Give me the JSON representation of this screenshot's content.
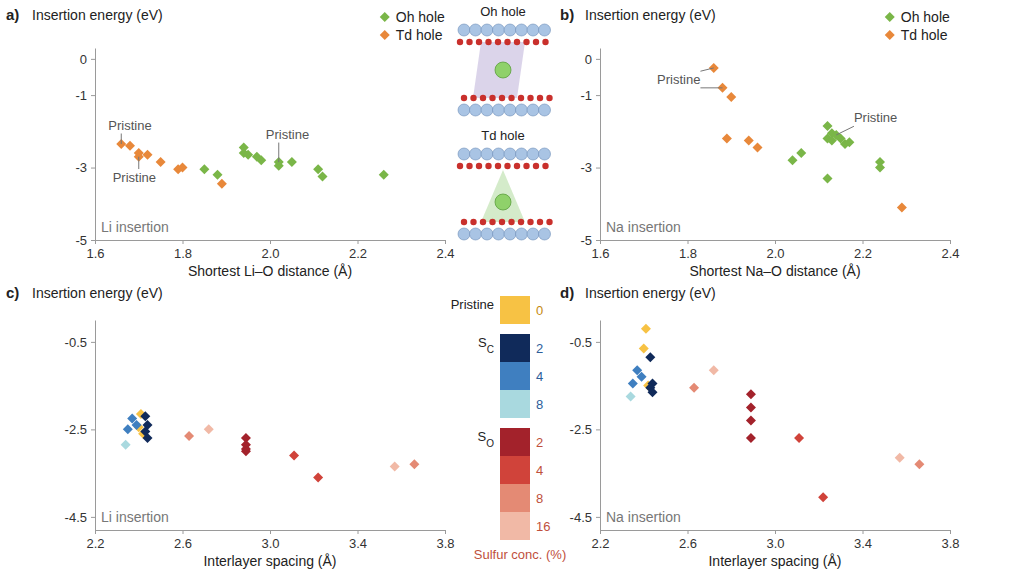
{
  "chart_data": [
    {
      "type": "scatter",
      "panel": "a)",
      "y_label": "Insertion energy (eV)",
      "x_label": "Shortest Li–O distance (Å)",
      "subtitle": "Li insertion",
      "xlim": [
        1.6,
        2.4
      ],
      "xticks": [
        1.6,
        1.8,
        {
          "value": 2,
          "label": "2.0"
        },
        2.2,
        2.4
      ],
      "ylim": [
        -5,
        0.3
      ],
      "yticks": [
        0,
        -1,
        -3,
        -5
      ],
      "grid": false,
      "legend": "top-right",
      "marker": "diamond",
      "series": [
        {
          "name": "Oh hole",
          "color": "#7ab648",
          "x": [
            1.85,
            1.88,
            1.94,
            1.94,
            1.95,
            1.97,
            1.98,
            2.02,
            2.02,
            2.05,
            2.11,
            2.12,
            2.26
          ],
          "values": [
            -3.05,
            -3.2,
            -2.45,
            -2.6,
            -2.65,
            -2.7,
            -2.8,
            -2.85,
            -2.95,
            -2.85,
            -3.05,
            -3.25,
            -3.2
          ]
        },
        {
          "name": "Td hole",
          "color": "#e8883a",
          "x": [
            1.66,
            1.68,
            1.7,
            1.7,
            1.72,
            1.75,
            1.79,
            1.8,
            1.89
          ],
          "values": [
            -2.35,
            -2.4,
            -2.6,
            -2.7,
            -2.65,
            -2.85,
            -3.05,
            -3.0,
            -3.45
          ]
        }
      ],
      "annotations": [
        {
          "text": "Pristine",
          "x": 1.68,
          "y": -1.95,
          "targets": [
            [
              1.66,
              -2.35
            ]
          ]
        },
        {
          "text": "Pristine",
          "x": 1.69,
          "y": -3.4,
          "targets": [
            [
              1.7,
              -2.7
            ]
          ]
        },
        {
          "text": "Pristine",
          "x": 2.04,
          "y": -2.2,
          "targets": [
            [
              2.02,
              -2.85
            ]
          ]
        }
      ]
    },
    {
      "type": "scatter",
      "panel": "b)",
      "y_label": "Insertion energy (eV)",
      "x_label": "Shortest Na–O distance (Å)",
      "subtitle": "Na insertion",
      "xlim": [
        1.6,
        2.4
      ],
      "xticks": [
        1.6,
        1.8,
        {
          "value": 2,
          "label": "2.0"
        },
        2.2,
        2.4
      ],
      "ylim": [
        -5,
        0.3
      ],
      "yticks": [
        0,
        -1,
        -3,
        -5
      ],
      "grid": false,
      "legend": "top-right",
      "marker": "diamond",
      "series": [
        {
          "name": "Oh hole",
          "color": "#7ab648",
          "x": [
            2.04,
            2.06,
            2.12,
            2.12,
            2.12,
            2.13,
            2.13,
            2.14,
            2.15,
            2.16,
            2.17,
            2.24,
            2.24
          ],
          "values": [
            -2.8,
            -2.6,
            -1.85,
            -2.2,
            -3.3,
            -2.05,
            -2.25,
            -2.1,
            -2.2,
            -2.35,
            -2.3,
            -2.85,
            -3.0
          ]
        },
        {
          "name": "Td hole",
          "color": "#e8883a",
          "x": [
            1.86,
            1.88,
            1.9,
            1.89,
            1.94,
            1.96,
            2.29
          ],
          "values": [
            -0.25,
            -0.8,
            -1.05,
            -2.2,
            -2.25,
            -2.45,
            -4.1
          ]
        }
      ],
      "annotations": [
        {
          "text": "Pristine",
          "x": 1.78,
          "y": -0.7,
          "targets": [
            [
              1.86,
              -0.25
            ],
            [
              1.88,
              -0.8
            ]
          ]
        },
        {
          "text": "Pristine",
          "x": 2.23,
          "y": -1.75,
          "targets": [
            [
              2.14,
              -2.1
            ]
          ]
        }
      ]
    },
    {
      "type": "scatter",
      "panel": "c)",
      "y_label": "Insertion energy (eV)",
      "x_label": "Interlayer spacing (Å)",
      "subtitle": "Li insertion",
      "xlim": [
        2.2,
        3.8
      ],
      "xticks": [
        2.2,
        2.6,
        {
          "value": 3,
          "label": "3.0"
        },
        3.4,
        3.8
      ],
      "ylim": [
        -4.8,
        0
      ],
      "yticks": [
        -0.5,
        -2.5,
        -4.5
      ],
      "grid": false,
      "marker": "diamond",
      "series": [
        {
          "color": "#f7c244",
          "x": [
            2.41,
            2.4,
            2.42
          ],
          "values": [
            -2.15,
            -2.45,
            -2.6
          ]
        },
        {
          "color": "#102a5a",
          "x": [
            2.43,
            2.44,
            2.43,
            2.44
          ],
          "values": [
            -2.2,
            -2.4,
            -2.55,
            -2.7
          ]
        },
        {
          "color": "#3f7fc0",
          "x": [
            2.37,
            2.35,
            2.39
          ],
          "values": [
            -2.25,
            -2.5,
            -2.4
          ]
        },
        {
          "color": "#a9d9df",
          "x": [
            2.34
          ],
          "values": [
            -2.85
          ]
        },
        {
          "color": "#a3222b",
          "x": [
            2.89,
            2.89,
            2.89,
            2.89
          ],
          "values": [
            -2.7,
            -2.85,
            -2.95,
            -3.0
          ]
        },
        {
          "color": "#d0433a",
          "x": [
            3.11,
            3.22
          ],
          "values": [
            -3.1,
            -3.6
          ]
        },
        {
          "color": "#e48a74",
          "x": [
            2.63,
            3.66
          ],
          "values": [
            -2.65,
            -3.3
          ]
        },
        {
          "color": "#f1b9a6",
          "x": [
            2.72,
            3.57
          ],
          "values": [
            -2.5,
            -3.35
          ]
        }
      ]
    },
    {
      "type": "scatter",
      "panel": "d)",
      "y_label": "Insertion energy (eV)",
      "x_label": "Interlayer spacing (Å)",
      "subtitle": "Na insertion",
      "xlim": [
        2.2,
        3.8
      ],
      "xticks": [
        2.2,
        2.6,
        {
          "value": 3,
          "label": "3.0"
        },
        3.4,
        3.8
      ],
      "ylim": [
        -4.8,
        0
      ],
      "yticks": [
        -0.5,
        -2.5,
        -4.5
      ],
      "grid": false,
      "marker": "diamond",
      "series": [
        {
          "color": "#f7c244",
          "x": [
            2.41,
            2.4,
            2.42
          ],
          "values": [
            -0.2,
            -0.65,
            -1.5
          ]
        },
        {
          "color": "#102a5a",
          "x": [
            2.43,
            2.44,
            2.43,
            2.44
          ],
          "values": [
            -0.85,
            -1.45,
            -1.55,
            -1.65
          ]
        },
        {
          "color": "#3f7fc0",
          "x": [
            2.37,
            2.35,
            2.39
          ],
          "values": [
            -1.15,
            -1.45,
            -1.3
          ]
        },
        {
          "color": "#a9d9df",
          "x": [
            2.34
          ],
          "values": [
            -1.75
          ]
        },
        {
          "color": "#a3222b",
          "x": [
            2.89,
            2.89,
            2.89,
            2.89
          ],
          "values": [
            -1.7,
            -2.0,
            -2.3,
            -2.7
          ]
        },
        {
          "color": "#d0433a",
          "x": [
            3.11,
            3.22
          ],
          "values": [
            -2.7,
            -4.05
          ]
        },
        {
          "color": "#e48a74",
          "x": [
            2.63,
            3.66
          ],
          "values": [
            -1.55,
            -3.3
          ]
        },
        {
          "color": "#f1b9a6",
          "x": [
            2.72,
            3.57
          ],
          "values": [
            -1.15,
            -3.15
          ]
        }
      ]
    }
  ],
  "schematic": {
    "labels": [
      "Oh hole",
      "Td hole"
    ]
  },
  "color_legend": {
    "title": "Sulfur conc. (%)",
    "groups": [
      {
        "label": "Pristine",
        "items": [
          {
            "value": 0,
            "color": "#f7c244"
          }
        ]
      },
      {
        "label": "S",
        "subscript": "C",
        "items": [
          {
            "value": 2,
            "color": "#102a5a"
          },
          {
            "value": 4,
            "color": "#3f7fc0"
          },
          {
            "value": 8,
            "color": "#a9d9df"
          }
        ]
      },
      {
        "label": "S",
        "subscript": "O",
        "items": [
          {
            "value": 2,
            "color": "#a3222b"
          },
          {
            "value": 4,
            "color": "#d0433a"
          },
          {
            "value": 8,
            "color": "#e48a74"
          },
          {
            "value": 16,
            "color": "#f1b9a6"
          }
        ]
      }
    ]
  }
}
